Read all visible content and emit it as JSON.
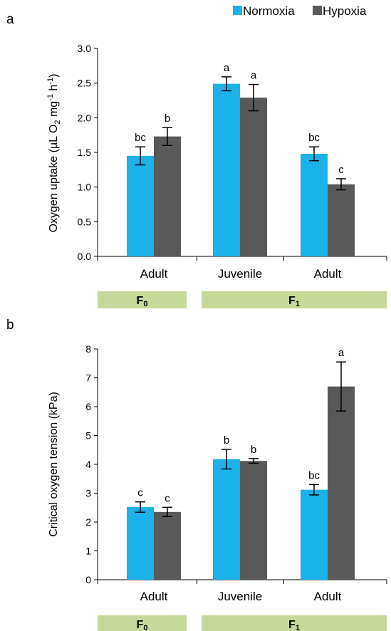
{
  "legend": [
    {
      "name": "Normoxia",
      "color": "#1ab2e8"
    },
    {
      "name": "Hypoxia",
      "color": "#595959"
    }
  ],
  "colors": {
    "generation_band": "#c6d99b",
    "axis": "#000000"
  },
  "chart_data": [
    {
      "panel": "a",
      "type": "bar",
      "ylabel": {
        "main": "Oxygen uptake (µL O",
        "o2_sub": "2",
        "mid": " mg",
        "mg_sup": "-1",
        "h": " h",
        "h_sup": "-1",
        "close": ")"
      },
      "ylim": [
        0,
        3.0
      ],
      "yticks": [
        "0.0",
        "0.5",
        "1.0",
        "1.5",
        "2.0",
        "2.5",
        "3.0"
      ],
      "categories": [
        "Adult",
        "Juvenile",
        "Adult"
      ],
      "generations": [
        {
          "label": "F",
          "sub": "0",
          "categories": [
            0
          ]
        },
        {
          "label": "F",
          "sub": "1",
          "categories": [
            1,
            2
          ]
        }
      ],
      "series": [
        {
          "name": "Normoxia",
          "values": [
            1.45,
            2.49,
            1.48
          ],
          "errors": [
            0.13,
            0.1,
            0.1
          ],
          "letters": [
            "bc",
            "a",
            "bc"
          ]
        },
        {
          "name": "Hypoxia",
          "values": [
            1.73,
            2.29,
            1.04
          ],
          "errors": [
            0.13,
            0.19,
            0.08
          ],
          "letters": [
            "b",
            "a",
            "c"
          ]
        }
      ]
    },
    {
      "panel": "b",
      "type": "bar",
      "ylabel": {
        "main": "Critical oxygen tension (kPa)"
      },
      "ylim": [
        0,
        8
      ],
      "yticks": [
        "0",
        "1",
        "2",
        "3",
        "4",
        "5",
        "6",
        "7",
        "8"
      ],
      "categories": [
        "Adult",
        "Juvenile",
        "Adult"
      ],
      "generations": [
        {
          "label": "F",
          "sub": "0",
          "categories": [
            0
          ]
        },
        {
          "label": "F",
          "sub": "1",
          "categories": [
            1,
            2
          ]
        }
      ],
      "series": [
        {
          "name": "Normoxia",
          "values": [
            2.52,
            4.18,
            3.12
          ],
          "errors": [
            0.18,
            0.34,
            0.18
          ],
          "letters": [
            "c",
            "b",
            "bc"
          ]
        },
        {
          "name": "Hypoxia",
          "values": [
            2.35,
            4.12,
            6.7
          ],
          "errors": [
            0.16,
            0.08,
            0.85
          ],
          "letters": [
            "c",
            "b",
            "a"
          ]
        }
      ]
    }
  ]
}
